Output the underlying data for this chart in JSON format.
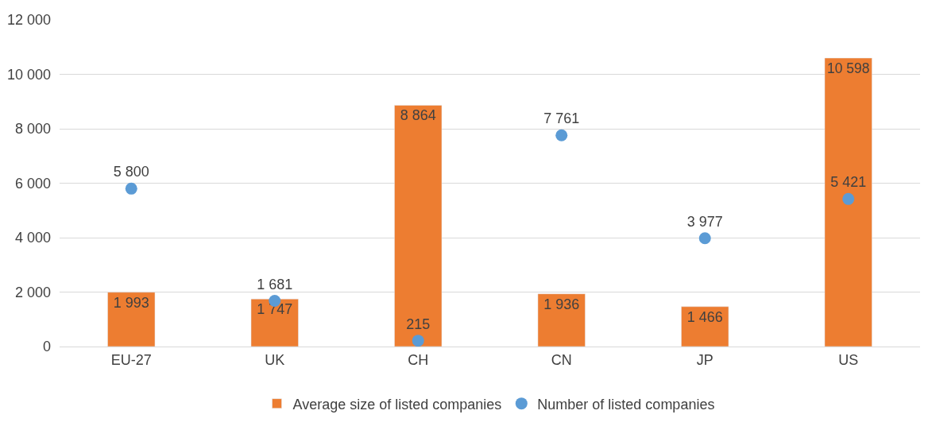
{
  "chart_data": {
    "type": "bar",
    "categories": [
      "EU-27",
      "UK",
      "CH",
      "CN",
      "JP",
      "US"
    ],
    "series": [
      {
        "name": "Average size of listed companies",
        "color": "#ed7d31",
        "values": [
          1993,
          1747,
          8864,
          1936,
          1466,
          10598
        ],
        "value_labels": [
          "1 993",
          "1 747",
          "8 864",
          "1 936",
          "1 466",
          "10 598"
        ]
      },
      {
        "name": "Number of listed companies",
        "type": "scatter",
        "color": "#5b9bd5",
        "values": [
          5800,
          1681,
          215,
          7761,
          3977,
          5421
        ],
        "value_labels": [
          "5 800",
          "1 681",
          "215",
          "7 761",
          "3 977",
          "5 421"
        ]
      }
    ],
    "ylim": [
      0,
      12000
    ],
    "yticks": [
      0,
      {
        "value": 2000,
        "label": "2 000"
      },
      {
        "value": 4000,
        "label": "4 000"
      },
      {
        "value": 6000,
        "label": "6 000"
      },
      {
        "value": 8000,
        "label": "8 000"
      },
      {
        "value": 10000,
        "label": "10 000"
      },
      {
        "value": 12000,
        "label": "12 000"
      }
    ],
    "grid": "y",
    "legend": "bottom",
    "marker": "circle"
  }
}
